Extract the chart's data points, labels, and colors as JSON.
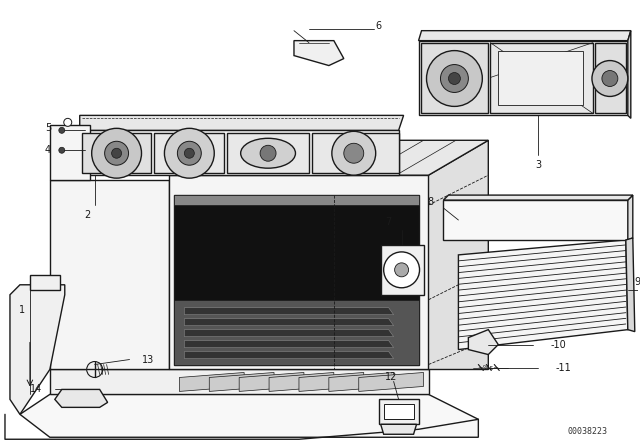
{
  "part_number": "00038223",
  "bg_color": "#ffffff",
  "line_color": "#1a1a1a",
  "lw_main": 1.0,
  "lw_thin": 0.6,
  "lw_thick": 1.4
}
